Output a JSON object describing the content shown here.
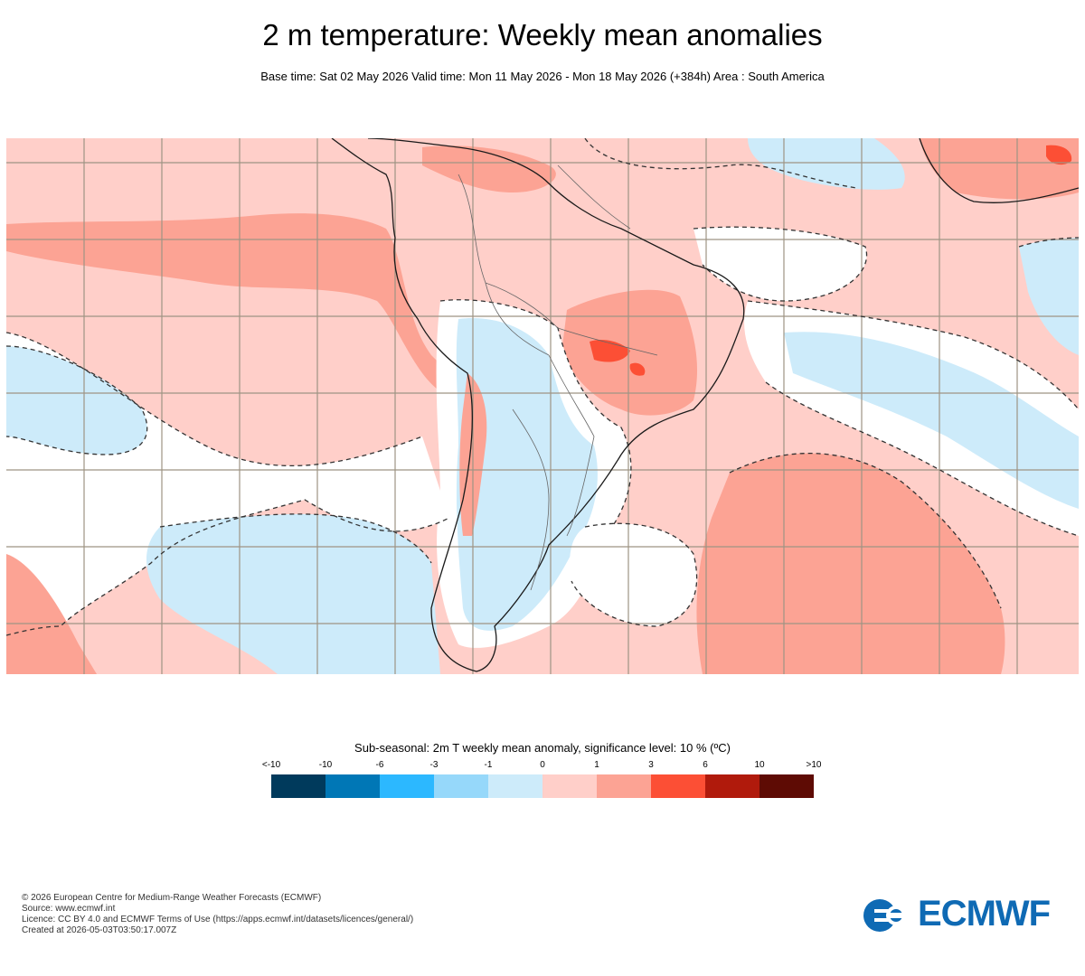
{
  "title": "2 m temperature: Weekly mean anomalies",
  "subtitle": "Base time: Sat 02 May 2026 Valid time: Mon 11 May 2026 - Mon 18 May 2026 (+384h) Area : South America",
  "legend": {
    "title": "Sub-seasonal: 2m T weekly mean anomaly, significance level: 10 % (ºC)",
    "tick_labels": [
      "<-10",
      "-10",
      "-6",
      "-3",
      "-1",
      "0",
      "1",
      "3",
      "6",
      "10",
      ">10"
    ],
    "colors": [
      "#003a5c",
      "#0077b6",
      "#2cb8ff",
      "#96d8fa",
      "#cdebfa",
      "#ffcfc9",
      "#fca394",
      "#fc4f35",
      "#b01a0c",
      "#5e0b04"
    ]
  },
  "map_colors": {
    "neutral": "#ffffff",
    "warm_light": "#ffcfc9",
    "warm_medium": "#fca394",
    "warm_strong": "#fc4f35",
    "cool_light": "#cdebfa",
    "coast": "#1a1a1a",
    "grid": "#9e9484"
  },
  "footer": {
    "copyright": "© 2026 European Centre for Medium-Range Weather Forecasts (ECMWF)",
    "source": "Source: www.ecmwf.int",
    "licence": "Licence: CC BY 4.0 and ECMWF Terms of Use (https://apps.ecmwf.int/datasets/licences/general/)",
    "created": "Created at 2026-05-03T03:50:17.007Z"
  },
  "logo": {
    "text": "ECMWF",
    "color": "#0f6ab4"
  }
}
